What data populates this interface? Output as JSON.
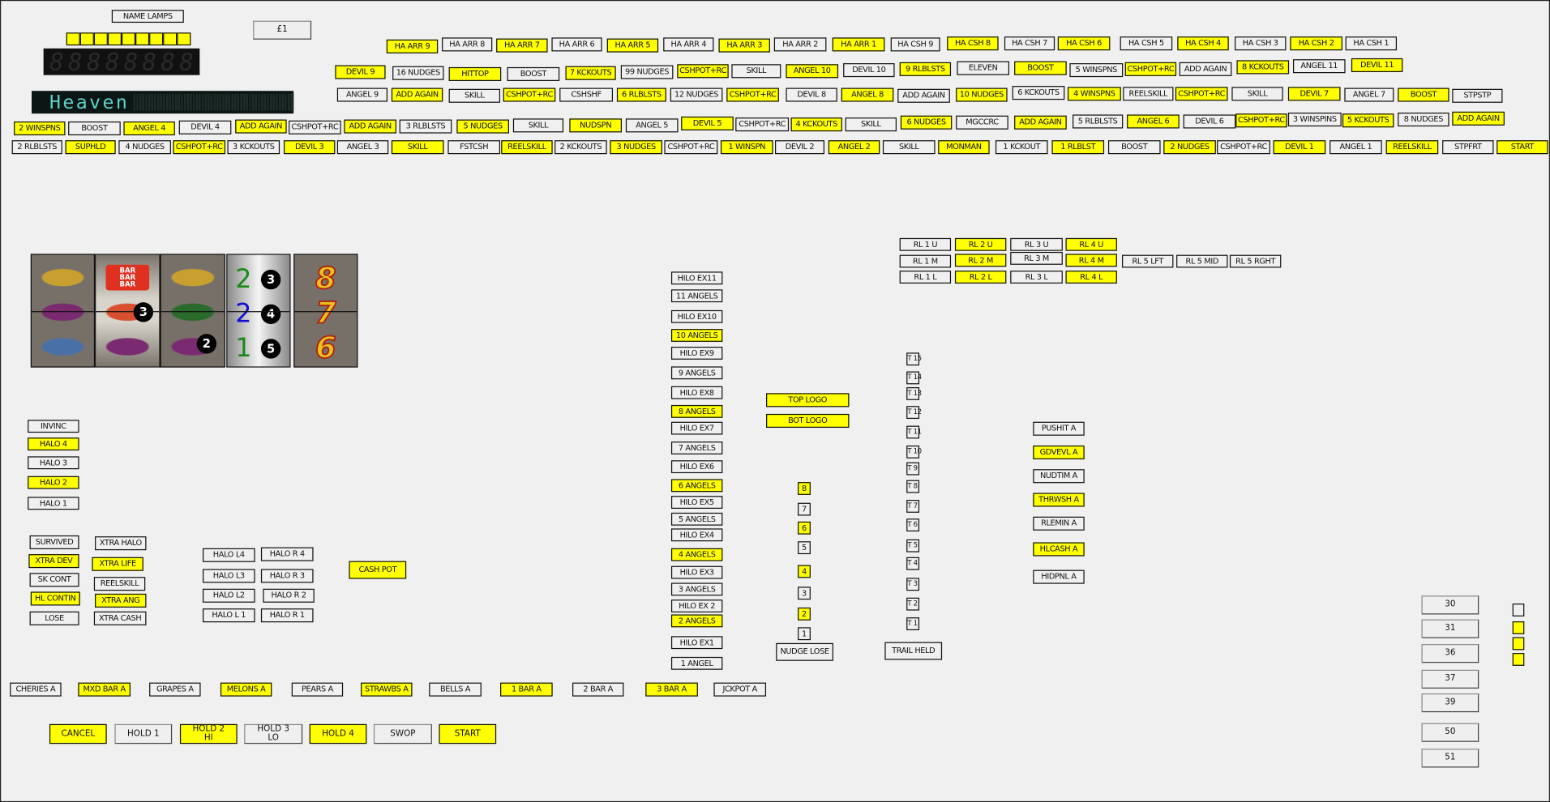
{
  "header": {
    "name_lamps": "NAME LAMPS",
    "price_button": "£1",
    "name_lamp_squares": [
      true,
      true,
      true,
      true,
      true,
      true,
      true,
      true,
      true
    ],
    "seven_segment": "88888888",
    "dot_matrix": "Heaven"
  },
  "reels": {
    "reel1": [
      "bell",
      "grapes",
      "impulse"
    ],
    "reel2": [
      "BAR\nBAR\nBAR",
      "strawberry",
      "grapes"
    ],
    "reel3": [
      "bell",
      "melon",
      "grapes"
    ],
    "reel2_badge": "3",
    "reel3_badge": "2",
    "reel4": [
      {
        "value": "2",
        "badge": "3",
        "color": "#1a8a1a"
      },
      {
        "value": "2",
        "badge": "4",
        "color": "#1010d0"
      },
      {
        "value": "1",
        "badge": "5",
        "color": "#1a8a1a"
      }
    ],
    "reel5": [
      "8",
      "7",
      "6"
    ]
  },
  "row1": [
    {
      "label": "HA ARR 9",
      "on": true
    },
    {
      "label": "HA ARR 8",
      "on": false
    },
    {
      "label": "HA ARR 7",
      "on": true
    },
    {
      "label": "HA ARR 6",
      "on": false
    },
    {
      "label": "HA ARR 5",
      "on": true
    },
    {
      "label": "HA ARR 4",
      "on": false
    },
    {
      "label": "HA ARR 3",
      "on": true
    },
    {
      "label": "HA ARR 2",
      "on": false
    },
    {
      "label": "HA ARR 1",
      "on": true
    },
    {
      "label": "HA CSH 9",
      "on": false
    },
    {
      "label": "HA CSH 8",
      "on": true
    },
    {
      "label": "HA CSH 7",
      "on": false
    },
    {
      "label": "HA CSH 6",
      "on": true
    },
    {
      "label": "HA CSH 5",
      "on": false
    },
    {
      "label": "HA CSH 4",
      "on": true
    },
    {
      "label": "HA CSH 3",
      "on": false
    },
    {
      "label": "HA CSH 2",
      "on": true
    },
    {
      "label": "HA CSH 1",
      "on": false
    }
  ],
  "row2": [
    {
      "label": "DEVIL 9",
      "on": true
    },
    {
      "label": "16 NUDGES",
      "on": false
    },
    {
      "label": "HITTOP",
      "on": true
    },
    {
      "label": "BOOST",
      "on": false
    },
    {
      "label": "7 KCKOUTS",
      "on": true
    },
    {
      "label": "99 NUDGES",
      "on": false
    },
    {
      "label": "CSHPOT+RC",
      "on": true
    },
    {
      "label": "SKILL",
      "on": false
    },
    {
      "label": "ANGEL 10",
      "on": true
    },
    {
      "label": "DEVIL 10",
      "on": false
    },
    {
      "label": "9 RLBLSTS",
      "on": true
    },
    {
      "label": "ELEVEN",
      "on": false
    },
    {
      "label": "BOOST",
      "on": true
    },
    {
      "label": "5 WINSPNS",
      "on": false
    },
    {
      "label": "CSHPOT+RC",
      "on": true
    },
    {
      "label": "ADD AGAIN",
      "on": false
    },
    {
      "label": "8 KCKOUTS",
      "on": true
    },
    {
      "label": "ANGEL 11",
      "on": false
    },
    {
      "label": "DEVIL 11",
      "on": true
    }
  ],
  "row3": [
    {
      "label": "ANGEL 9",
      "on": false
    },
    {
      "label": "ADD AGAIN",
      "on": true
    },
    {
      "label": "SKILL",
      "on": false
    },
    {
      "label": "CSHPOT+RC",
      "on": true
    },
    {
      "label": "CSHSHF",
      "on": false
    },
    {
      "label": "6 RLBLSTS",
      "on": true
    },
    {
      "label": "12 NUDGES",
      "on": false
    },
    {
      "label": "CSHPOT+RC",
      "on": true
    },
    {
      "label": "DEVIL 8",
      "on": false
    },
    {
      "label": "ANGEL 8",
      "on": true
    },
    {
      "label": "ADD AGAIN",
      "on": false
    },
    {
      "label": "10 NUDGES",
      "on": true
    },
    {
      "label": "6 KCKOUTS",
      "on": false
    },
    {
      "label": "4 WINSPNS",
      "on": true
    },
    {
      "label": "REELSKILL",
      "on": false
    },
    {
      "label": "CSHPOT+RC",
      "on": true
    },
    {
      "label": "SKILL",
      "on": false
    },
    {
      "label": "DEVIL 7",
      "on": true
    },
    {
      "label": "ANGEL 7",
      "on": false
    },
    {
      "label": "BOOST",
      "on": true
    },
    {
      "label": "STPSTP",
      "on": false
    }
  ],
  "row4": [
    {
      "label": "2 WINSPNS",
      "on": true
    },
    {
      "label": "BOOST",
      "on": false
    },
    {
      "label": "ANGEL 4",
      "on": true
    },
    {
      "label": "DEVIL 4",
      "on": false
    },
    {
      "label": "ADD AGAIN",
      "on": true
    },
    {
      "label": "CSHPOT+RC",
      "on": false
    },
    {
      "label": "ADD AGAIN",
      "on": true
    },
    {
      "label": "3 RLBLSTS",
      "on": false
    },
    {
      "label": "5 NUDGES",
      "on": true
    },
    {
      "label": "SKILL",
      "on": false
    },
    {
      "label": "NUDSPN",
      "on": true
    },
    {
      "label": "ANGEL 5",
      "on": false
    },
    {
      "label": "DEVIL 5",
      "on": true
    },
    {
      "label": "CSHPOT+RC",
      "on": false
    },
    {
      "label": "4 KCKOUTS",
      "on": true
    },
    {
      "label": "SKILL",
      "on": false
    },
    {
      "label": "6 NUDGES",
      "on": true
    },
    {
      "label": "MGCCRC",
      "on": false
    },
    {
      "label": "ADD AGAIN",
      "on": true
    },
    {
      "label": "5 RLBLSTS",
      "on": false
    },
    {
      "label": "ANGEL 6",
      "on": true
    },
    {
      "label": "DEVIL 6",
      "on": false
    },
    {
      "label": "CSHPOT+RC",
      "on": true
    },
    {
      "label": "3 WINSPINS",
      "on": false
    },
    {
      "label": "5 KCKOUTS",
      "on": true
    },
    {
      "label": "8 NUDGES",
      "on": false
    },
    {
      "label": "ADD AGAIN",
      "on": true
    }
  ],
  "row5": [
    {
      "label": "2 RLBLSTS",
      "on": false
    },
    {
      "label": "SUPHLD",
      "on": true
    },
    {
      "label": "4 NUDGES",
      "on": false
    },
    {
      "label": "CSHPOT+RC",
      "on": true
    },
    {
      "label": "3 KCKOUTS",
      "on": false
    },
    {
      "label": "DEVIL 3",
      "on": true
    },
    {
      "label": "ANGEL 3",
      "on": false
    },
    {
      "label": "SKILL",
      "on": true
    },
    {
      "label": "FSTCSH",
      "on": false
    },
    {
      "label": "REELSKILL",
      "on": true
    },
    {
      "label": "2 KCKOUTS",
      "on": false
    },
    {
      "label": "3 NUDGES",
      "on": true
    },
    {
      "label": "CSHPOT+RC",
      "on": false
    },
    {
      "label": "1 WINSPN",
      "on": true
    },
    {
      "label": "DEVIL 2",
      "on": false
    },
    {
      "label": "ANGEL 2",
      "on": true
    },
    {
      "label": "SKILL",
      "on": false
    },
    {
      "label": "MONMAN",
      "on": true
    },
    {
      "label": "1 KCKOUT",
      "on": false
    },
    {
      "label": "1 RLBLST",
      "on": true
    },
    {
      "label": "BOOST",
      "on": false
    },
    {
      "label": "2 NUDGES",
      "on": true
    },
    {
      "label": "CSHPOT+RC",
      "on": false
    },
    {
      "label": "DEVIL 1",
      "on": true
    },
    {
      "label": "ANGEL 1",
      "on": false
    },
    {
      "label": "REELSKILL",
      "on": true
    },
    {
      "label": "STPFRT",
      "on": false
    },
    {
      "label": "START",
      "on": true
    }
  ],
  "hilo": [
    {
      "label": "HILO EX11",
      "on": false
    },
    {
      "label": "11 ANGELS",
      "on": false
    },
    {
      "label": "HILO EX10",
      "on": false
    },
    {
      "label": "10 ANGELS",
      "on": true
    },
    {
      "label": "HILO EX9",
      "on": false
    },
    {
      "label": "9 ANGELS",
      "on": false
    },
    {
      "label": "HILO EX8",
      "on": false
    },
    {
      "label": "8 ANGELS",
      "on": true
    },
    {
      "label": "HILO EX7",
      "on": false
    },
    {
      "label": "7 ANGELS",
      "on": false
    },
    {
      "label": "HILO EX6",
      "on": false
    },
    {
      "label": "6 ANGELS",
      "on": true
    },
    {
      "label": "HILO EX5",
      "on": false
    },
    {
      "label": "5 ANGELS",
      "on": false
    },
    {
      "label": "HILO EX4",
      "on": false
    },
    {
      "label": "4 ANGELS",
      "on": true
    },
    {
      "label": "HILO EX3",
      "on": false
    },
    {
      "label": "3 ANGELS",
      "on": false
    },
    {
      "label": "HILO EX 2",
      "on": false
    },
    {
      "label": "2 ANGELS",
      "on": true
    },
    {
      "label": "HILO EX1",
      "on": false
    },
    {
      "label": "1 ANGEL",
      "on": false
    }
  ],
  "logos": [
    {
      "label": "TOP LOGO",
      "on": true
    },
    {
      "label": "BOT LOGO",
      "on": true
    }
  ],
  "nudges": [
    {
      "label": "8",
      "on": true
    },
    {
      "label": "7",
      "on": false
    },
    {
      "label": "6",
      "on": true
    },
    {
      "label": "5",
      "on": false
    },
    {
      "label": "4",
      "on": true
    },
    {
      "label": "3",
      "on": false
    },
    {
      "label": "2",
      "on": true
    },
    {
      "label": "1",
      "on": false
    },
    {
      "label": "NUDGE LOSE",
      "on": false
    }
  ],
  "reel_lamps": [
    {
      "label": "RL 1 U",
      "on": false
    },
    {
      "label": "RL 2 U",
      "on": true
    },
    {
      "label": "RL 3 U",
      "on": false
    },
    {
      "label": "RL 4 U",
      "on": true
    },
    {
      "label": "RL 1 M",
      "on": false
    },
    {
      "label": "RL 2 M",
      "on": true
    },
    {
      "label": "RL 3 M",
      "on": false
    },
    {
      "label": "RL 4 M",
      "on": true
    },
    {
      "label": "RL 5 LFT",
      "on": false
    },
    {
      "label": "RL 5 MID",
      "on": false
    },
    {
      "label": "RL 5 RGHT",
      "on": false
    },
    {
      "label": "RL 1 L",
      "on": false
    },
    {
      "label": "RL 2 L",
      "on": true
    },
    {
      "label": "RL 3 L",
      "on": false
    },
    {
      "label": "RL 4 L",
      "on": true
    }
  ],
  "trail": [
    {
      "label": "T 15",
      "on": false
    },
    {
      "label": "T 14",
      "on": false
    },
    {
      "label": "T 13",
      "on": false
    },
    {
      "label": "T 12",
      "on": false
    },
    {
      "label": "T 11",
      "on": false
    },
    {
      "label": "T 10",
      "on": false
    },
    {
      "label": "T 9",
      "on": false
    },
    {
      "label": "T 8",
      "on": false
    },
    {
      "label": "T 7",
      "on": false
    },
    {
      "label": "T 6",
      "on": false
    },
    {
      "label": "T 5",
      "on": false
    },
    {
      "label": "T 4",
      "on": false
    },
    {
      "label": "T 3",
      "on": false
    },
    {
      "label": "T 2",
      "on": false
    },
    {
      "label": "T 1",
      "on": false
    },
    {
      "label": "TRAIL HELD",
      "on": false
    }
  ],
  "features": [
    {
      "label": "PUSHIT A",
      "on": false
    },
    {
      "label": "GDVEVL A",
      "on": true
    },
    {
      "label": "NUDTIM A",
      "on": false
    },
    {
      "label": "THRWSH A",
      "on": true
    },
    {
      "label": "RLEMIN A",
      "on": false
    },
    {
      "label": "HLCASH A",
      "on": true
    },
    {
      "label": "HIDPNL A",
      "on": false
    }
  ],
  "halo": [
    {
      "label": "INVINC",
      "on": false
    },
    {
      "label": "HALO 4",
      "on": true
    },
    {
      "label": "HALO 3",
      "on": false
    },
    {
      "label": "HALO 2",
      "on": true
    },
    {
      "label": "HALO 1",
      "on": false
    }
  ],
  "status": [
    {
      "label": "SURVIVED",
      "on": false
    },
    {
      "label": "XTRA DEV",
      "on": true
    },
    {
      "label": "SK CONT",
      "on": false
    },
    {
      "label": "HL CONTIN",
      "on": true
    },
    {
      "label": "LOSE",
      "on": false
    },
    {
      "label": "XTRA HALO",
      "on": false
    },
    {
      "label": "XTRA LIFE",
      "on": true
    },
    {
      "label": "REELSKILL",
      "on": false
    },
    {
      "label": "XTRA ANG",
      "on": true
    },
    {
      "label": "XTRA CASH",
      "on": false
    }
  ],
  "halo_lr": [
    {
      "label": "HALO L4",
      "on": false
    },
    {
      "label": "HALO R 4",
      "on": false
    },
    {
      "label": "HALO L3",
      "on": false
    },
    {
      "label": "HALO R 3",
      "on": false
    },
    {
      "label": "HALO L2",
      "on": false
    },
    {
      "label": "HALO R 2",
      "on": false
    },
    {
      "label": "HALO L 1",
      "on": false
    },
    {
      "label": "HALO R 1",
      "on": false
    },
    {
      "label": "CASH POT",
      "on": true
    }
  ],
  "awards": [
    {
      "label": "CHERIES A",
      "on": false
    },
    {
      "label": "MXD BAR A",
      "on": true
    },
    {
      "label": "GRAPES A",
      "on": false
    },
    {
      "label": "MELONS A",
      "on": true
    },
    {
      "label": "PEARS A",
      "on": false
    },
    {
      "label": "STRAWBS A",
      "on": true
    },
    {
      "label": "BELLS A",
      "on": false
    },
    {
      "label": "1 BAR A",
      "on": true
    },
    {
      "label": "2 BAR A",
      "on": false
    },
    {
      "label": "3 BAR A",
      "on": true
    },
    {
      "label": "JCKPOT A",
      "on": false
    }
  ],
  "buttons": [
    {
      "label": "CANCEL",
      "on": true
    },
    {
      "label": "HOLD 1",
      "on": false
    },
    {
      "label": "HOLD 2\nHI",
      "on": true
    },
    {
      "label": "HOLD 3\nLO",
      "on": false
    },
    {
      "label": "HOLD 4",
      "on": true
    },
    {
      "label": "SWOP",
      "on": false
    },
    {
      "label": "START",
      "on": true
    }
  ],
  "side_buttons": [
    {
      "label": "30"
    },
    {
      "label": "31"
    },
    {
      "label": "36"
    },
    {
      "label": "37"
    },
    {
      "label": "39"
    },
    {
      "label": "50"
    },
    {
      "label": "51"
    }
  ],
  "side_squares": [
    false,
    true,
    true,
    true
  ],
  "colors": {
    "lamp_on": "#ffff00",
    "lamp_off": "#f0f0f0",
    "background": "#f0f0f0"
  }
}
